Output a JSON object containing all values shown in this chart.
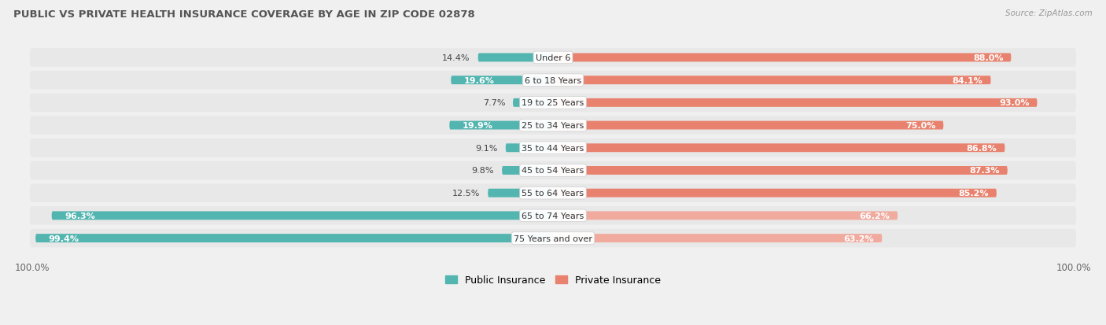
{
  "title": "PUBLIC VS PRIVATE HEALTH INSURANCE COVERAGE BY AGE IN ZIP CODE 02878",
  "source": "Source: ZipAtlas.com",
  "categories": [
    "Under 6",
    "6 to 18 Years",
    "19 to 25 Years",
    "25 to 34 Years",
    "35 to 44 Years",
    "45 to 54 Years",
    "55 to 64 Years",
    "65 to 74 Years",
    "75 Years and over"
  ],
  "public_values": [
    14.4,
    19.6,
    7.7,
    19.9,
    9.1,
    9.8,
    12.5,
    96.3,
    99.4
  ],
  "private_values": [
    88.0,
    84.1,
    93.0,
    75.0,
    86.8,
    87.3,
    85.2,
    66.2,
    63.2
  ],
  "public_color": "#52b5b0",
  "private_color": "#e8826e",
  "public_color_large": "#52b5b0",
  "private_color_large": "#f0aa9e",
  "row_bg_color": "#e8e8e8",
  "bg_color": "#f0f0f0",
  "title_color": "#555555",
  "legend_public": "Public Insurance",
  "legend_private": "Private Insurance",
  "max_val": 100.0
}
